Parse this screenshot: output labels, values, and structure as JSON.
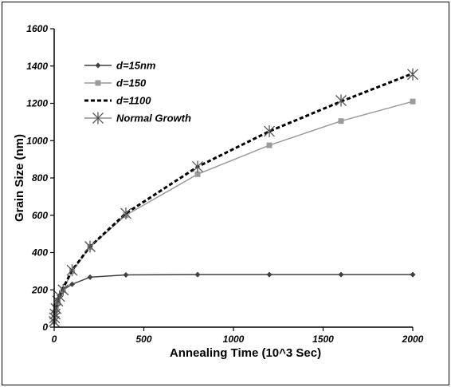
{
  "chart_data": {
    "type": "line",
    "title": "",
    "xlabel": "Annealing Time (10^3 Sec)",
    "ylabel": "Grain Size (nm)",
    "xlim": [
      0,
      2000
    ],
    "ylim": [
      0,
      1600
    ],
    "xticks": [
      0,
      500,
      1000,
      1500,
      2000
    ],
    "yticks": [
      0,
      200,
      400,
      600,
      800,
      1000,
      1200,
      1400,
      1600
    ],
    "grid": false,
    "legend_position": "top-left",
    "series": [
      {
        "name": "d=15nm",
        "color": "#404040",
        "marker": "diamond",
        "line_style": "solid",
        "x": [
          0,
          2,
          5,
          10,
          20,
          30,
          50,
          100,
          200,
          400,
          800,
          1200,
          1600,
          2000
        ],
        "y": [
          30,
          60,
          90,
          120,
          150,
          170,
          200,
          230,
          268,
          280,
          282,
          282,
          282,
          282
        ]
      },
      {
        "name": "d=150",
        "color": "#9a9a9a",
        "marker": "square",
        "line_style": "solid",
        "x": [
          0,
          5,
          10,
          20,
          50,
          100,
          200,
          400,
          800,
          1200,
          1600,
          2000
        ],
        "y": [
          30,
          65,
          95,
          130,
          200,
          300,
          430,
          600,
          820,
          975,
          1105,
          1210
        ]
      },
      {
        "name": "d=1100",
        "color": "#000000",
        "marker": "none",
        "line_style": "dashed",
        "x": [
          0,
          5,
          10,
          20,
          50,
          100,
          200,
          400,
          800,
          1200,
          1600,
          2000
        ],
        "y": [
          30,
          70,
          100,
          140,
          210,
          305,
          432,
          610,
          860,
          1050,
          1210,
          1360
        ]
      },
      {
        "name": "Normal Growth",
        "color": "#555555",
        "marker": "star",
        "line_style": "none",
        "x": [
          0,
          2,
          5,
          10,
          20,
          30,
          50,
          100,
          200,
          400,
          800,
          1200,
          1600,
          2000
        ],
        "y": [
          30,
          50,
          70,
          100,
          140,
          165,
          200,
          305,
          432,
          610,
          860,
          1050,
          1215,
          1355
        ]
      }
    ]
  }
}
